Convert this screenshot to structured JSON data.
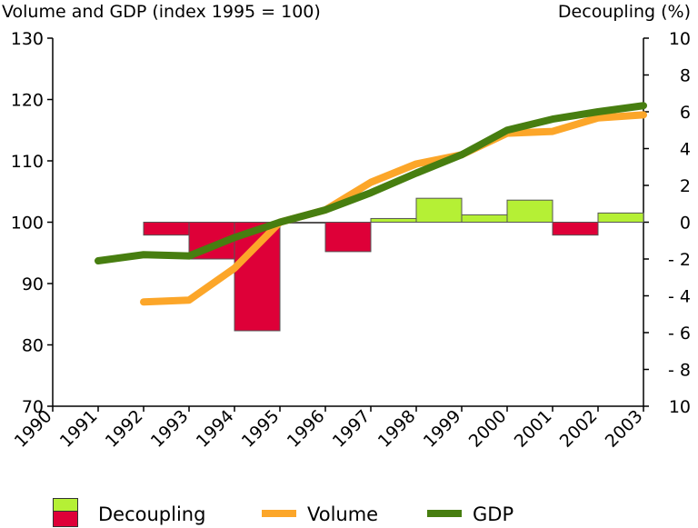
{
  "chart_data": {
    "type": "bar+line",
    "title_left": "Volume and GDP (index 1995 = 100)",
    "title_right": "Decoupling (%)",
    "x": [
      "1990",
      "1991",
      "1992",
      "1993",
      "1994",
      "1995",
      "1996",
      "1997",
      "1998",
      "1999",
      "2000",
      "2001",
      "2002",
      "2003"
    ],
    "y_left": {
      "ticks": [
        "130",
        "120",
        "110",
        "100",
        "90",
        "80",
        "70"
      ],
      "lim": [
        70,
        130
      ]
    },
    "y_right": {
      "ticks": [
        "10",
        "8",
        "6",
        "4",
        "2",
        "0",
        "- 2",
        "- 4",
        "- 6",
        "- 8",
        "10"
      ],
      "lim": [
        -10,
        10
      ]
    },
    "series": [
      {
        "name": "Decoupling",
        "type": "bar",
        "axis": "right",
        "x": [
          "1993",
          "1994",
          "1995",
          "1996",
          "1997",
          "1998",
          "1999",
          "2000",
          "2001",
          "2002",
          "2003"
        ],
        "values": [
          -0.7,
          -2.0,
          -5.9,
          -0.05,
          -1.6,
          0.2,
          1.3,
          0.4,
          1.2,
          -0.7,
          0.5
        ],
        "colors": {
          "positive": "#b5f035",
          "negative": "#de0038"
        }
      },
      {
        "name": "Volume",
        "type": "line",
        "axis": "left",
        "color": "#fca629",
        "x": [
          "1992",
          "1993",
          "1994",
          "1995",
          "1996",
          "1997",
          "1998",
          "1999",
          "2000",
          "2001",
          "2002",
          "2003"
        ],
        "values": [
          87,
          87.3,
          92.5,
          100,
          102,
          106.5,
          109.5,
          111,
          114.5,
          114.8,
          117,
          117.5
        ]
      },
      {
        "name": "GDP",
        "type": "line",
        "axis": "left",
        "color": "#477e10",
        "x": [
          "1991",
          "1992",
          "1993",
          "1994",
          "1995",
          "1996",
          "1997",
          "1998",
          "1999",
          "2000",
          "2001",
          "2002",
          "2003"
        ],
        "values": [
          93.7,
          94.7,
          94.5,
          97.5,
          100,
          102,
          104.8,
          108,
          111,
          115,
          116.8,
          118,
          119
        ]
      }
    ],
    "legend": {
      "position": "bottom",
      "items": [
        {
          "label": "Decoupling",
          "colors": [
            "#b5f035",
            "#de0038"
          ]
        },
        {
          "label": "Volume",
          "color": "#fca629"
        },
        {
          "label": "GDP",
          "color": "#477e10"
        }
      ]
    }
  }
}
